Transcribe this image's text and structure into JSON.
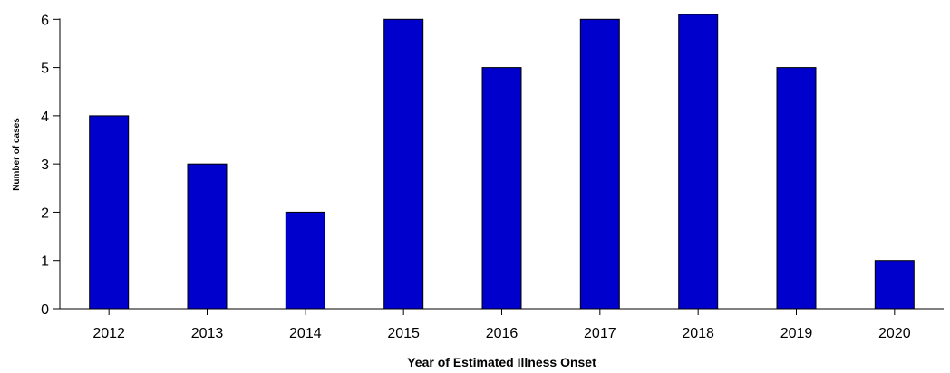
{
  "chart_data": {
    "type": "bar",
    "categories": [
      "2012",
      "2013",
      "2014",
      "2015",
      "2016",
      "2017",
      "2018",
      "2019",
      "2020"
    ],
    "values": [
      4,
      3,
      2,
      6,
      5,
      6,
      6.1,
      5,
      1
    ],
    "xlabel": "Year of Estimated Illness Onset",
    "ylabel": "Number of cases",
    "ylim": [
      0,
      6.4
    ],
    "yticks": [
      0,
      1,
      2,
      3,
      4,
      5,
      6
    ],
    "grid": false,
    "legend": "none",
    "colors": {
      "bar_fill": "#0000CC",
      "bar_stroke": "#000000",
      "axis": "#000000"
    }
  }
}
